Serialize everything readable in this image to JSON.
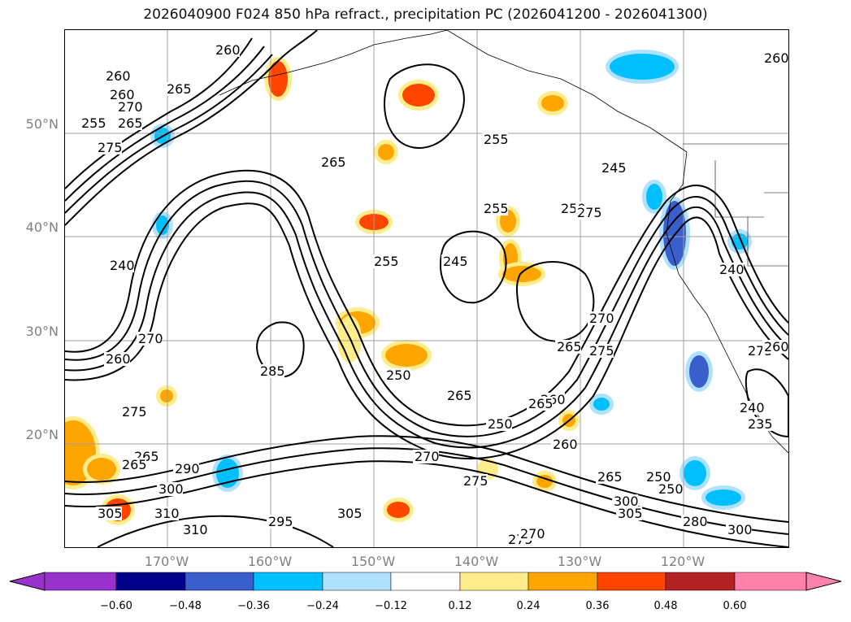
{
  "title": "2026040900 F024 850 hPa refract., precipitation PC (2026041200 - 2026041300)",
  "map": {
    "lat_labels": [
      "50°N",
      "40°N",
      "30°N",
      "20°N"
    ],
    "lon_labels": [
      "170°W",
      "160°W",
      "150°W",
      "140°W",
      "130°W",
      "120°W"
    ]
  },
  "contour_labels": [
    "260",
    "260",
    "265",
    "270",
    "275",
    "265",
    "265",
    "255",
    "255",
    "260",
    "260",
    "255",
    "240",
    "270",
    "260",
    "285",
    "250",
    "245",
    "255",
    "250",
    "275",
    "270",
    "265",
    "275",
    "245",
    "240",
    "275",
    "265",
    "290",
    "300",
    "305",
    "310",
    "310",
    "295",
    "305",
    "270",
    "275",
    "265",
    "260",
    "250",
    "265",
    "250",
    "260",
    "275",
    "270",
    "265",
    "250",
    "300",
    "305",
    "280",
    "300",
    "240",
    "235",
    "275",
    "265",
    "260"
  ],
  "colorbar": {
    "colors": [
      "#9932cc",
      "#00008b",
      "#3a5fcd",
      "#00bfff",
      "#b0e2ff",
      "#ffffff",
      "#ffec8b",
      "#ffa500",
      "#ff4500",
      "#b22222",
      "#ff82ab"
    ],
    "ticks": [
      "−0.60",
      "−0.48",
      "−0.36",
      "−0.24",
      "−0.12",
      "0.12",
      "0.24",
      "0.36",
      "0.48",
      "0.60"
    ]
  },
  "colors": {
    "contour": "#000000",
    "grid": "#a0a0a0",
    "coast": "#000000"
  }
}
